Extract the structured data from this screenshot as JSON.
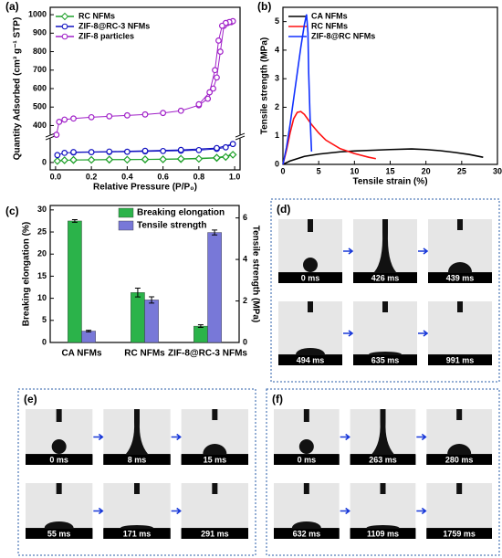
{
  "chart_data": [
    {
      "label": "(a)",
      "type": "line",
      "x_label": "Relative Pressure (P/P₀)",
      "y_label": "Quantity Adsorbed (cm³ g⁻¹ STP)",
      "xlim": [
        -0.03,
        1.03
      ],
      "xticks": [
        {
          "value": 0,
          "label": "0.0"
        },
        0.2,
        0.4,
        0.6,
        0.8,
        {
          "value": 1,
          "label": "1.0"
        }
      ],
      "ylim": [
        -40,
        1040
      ],
      "axis_break": [
        140,
        340
      ],
      "yticks": [
        0,
        400,
        500,
        600,
        700,
        800,
        900,
        1000
      ],
      "legend": "upper left",
      "series": [
        {
          "name": "RC NFMs",
          "color": "#1fa02a",
          "marker": "diamond",
          "x": [
            0.01,
            0.05,
            0.1,
            0.2,
            0.3,
            0.4,
            0.5,
            0.6,
            0.7,
            0.8,
            0.9,
            0.95,
            0.99,
            0.9,
            0.7,
            0.5,
            0.3,
            0.1
          ],
          "values": [
            8,
            12,
            13,
            14,
            15,
            15,
            16,
            17,
            18,
            20,
            24,
            30,
            42,
            26,
            20,
            17,
            16,
            14
          ]
        },
        {
          "name": "ZIF-8@RC-3 NFMs",
          "color": "#1010c0",
          "marker": "circle",
          "x": [
            0.01,
            0.05,
            0.1,
            0.2,
            0.3,
            0.4,
            0.5,
            0.6,
            0.7,
            0.8,
            0.9,
            0.95,
            0.99,
            0.9,
            0.7,
            0.5,
            0.3,
            0.1
          ],
          "values": [
            40,
            52,
            54,
            56,
            57,
            58,
            60,
            62,
            64,
            67,
            74,
            82,
            100,
            78,
            68,
            63,
            59,
            56
          ]
        },
        {
          "name": "ZIF-8 particles",
          "color": "#a020c8",
          "marker": "circle",
          "x": [
            0.005,
            0.02,
            0.05,
            0.1,
            0.2,
            0.3,
            0.4,
            0.5,
            0.6,
            0.7,
            0.8,
            0.85,
            0.88,
            0.9,
            0.92,
            0.94,
            0.96,
            0.98,
            0.99,
            0.97,
            0.95,
            0.93,
            0.91,
            0.89,
            0.86,
            0.8
          ],
          "values": [
            350,
            420,
            432,
            438,
            445,
            450,
            455,
            460,
            468,
            480,
            510,
            545,
            600,
            660,
            800,
            940,
            955,
            960,
            965,
            960,
            955,
            940,
            860,
            700,
            580,
            515
          ]
        }
      ]
    },
    {
      "label": "(b)",
      "type": "line",
      "x_label": "Tensile strain (%)",
      "y_label": "Tensile strength (MPa)",
      "xlim": [
        0,
        30
      ],
      "xticks": [
        0,
        5,
        10,
        15,
        20,
        25,
        30
      ],
      "ylim": [
        0,
        5.5
      ],
      "yticks": [
        0,
        1,
        2,
        3,
        4,
        5
      ],
      "legend": "upper left",
      "series": [
        {
          "name": "CA NFMs",
          "color": "#000000",
          "x": [
            0,
            1,
            3,
            5,
            8,
            10,
            13,
            15,
            18,
            20,
            22,
            24,
            26,
            28
          ],
          "values": [
            0,
            0.12,
            0.28,
            0.36,
            0.44,
            0.47,
            0.5,
            0.52,
            0.54,
            0.52,
            0.48,
            0.42,
            0.35,
            0.25
          ]
        },
        {
          "name": "RC NFMs",
          "color": "#ff1010",
          "x": [
            0,
            0.5,
            1,
            1.5,
            2,
            2.5,
            3,
            4,
            5,
            6,
            8,
            10,
            12,
            13
          ],
          "values": [
            0,
            0.5,
            1.1,
            1.6,
            1.82,
            1.85,
            1.75,
            1.4,
            1.1,
            0.85,
            0.55,
            0.38,
            0.25,
            0.2
          ]
        },
        {
          "name": "ZIF-8@RC NFMs",
          "color": "#1030ff",
          "x": [
            0,
            0.5,
            1,
            1.5,
            2,
            2.5,
            3,
            3.3,
            3.5,
            3.6,
            3.8,
            4
          ],
          "values": [
            0,
            0.6,
            1.4,
            2.3,
            3.2,
            4.1,
            4.9,
            5.25,
            4.6,
            3.2,
            1.6,
            0.45
          ]
        }
      ]
    },
    {
      "label": "(c)",
      "type": "bar",
      "y_label": "Breaking elongation (%)",
      "y2_label": "Tensile strength (MPa)",
      "categories": [
        "CA NFMs",
        "RC NFMs",
        "ZIF-8@RC-3 NFMs"
      ],
      "ylim": [
        0,
        31
      ],
      "yticks": [
        0,
        5,
        10,
        15,
        20,
        25,
        30
      ],
      "y2lim": [
        0,
        6.6
      ],
      "y2ticks": [
        0,
        2,
        4,
        6
      ],
      "legend": "upper center",
      "series": [
        {
          "name": "Breaking elongation",
          "color": "#2bb34a",
          "values": [
            27.5,
            11.3,
            3.7
          ],
          "errors": [
            0.3,
            1.0,
            0.3
          ]
        },
        {
          "name": "Tensile strength",
          "color": "#7878d8",
          "axis": "y2",
          "values": [
            0.55,
            2.05,
            5.3
          ],
          "errors": [
            0.04,
            0.15,
            0.12
          ]
        }
      ]
    }
  ],
  "photo_panels": [
    {
      "label": "(d)",
      "frames": [
        "0 ms",
        "426 ms",
        "439 ms",
        "494 ms",
        "635 ms",
        "991 ms"
      ]
    },
    {
      "label": "(e)",
      "frames": [
        "0 ms",
        "8 ms",
        "15 ms",
        "55 ms",
        "171 ms",
        "291 ms"
      ]
    },
    {
      "label": "(f)",
      "frames": [
        "0 ms",
        "263 ms",
        "280 ms",
        "632 ms",
        "1109 ms",
        "1759 ms"
      ]
    }
  ]
}
